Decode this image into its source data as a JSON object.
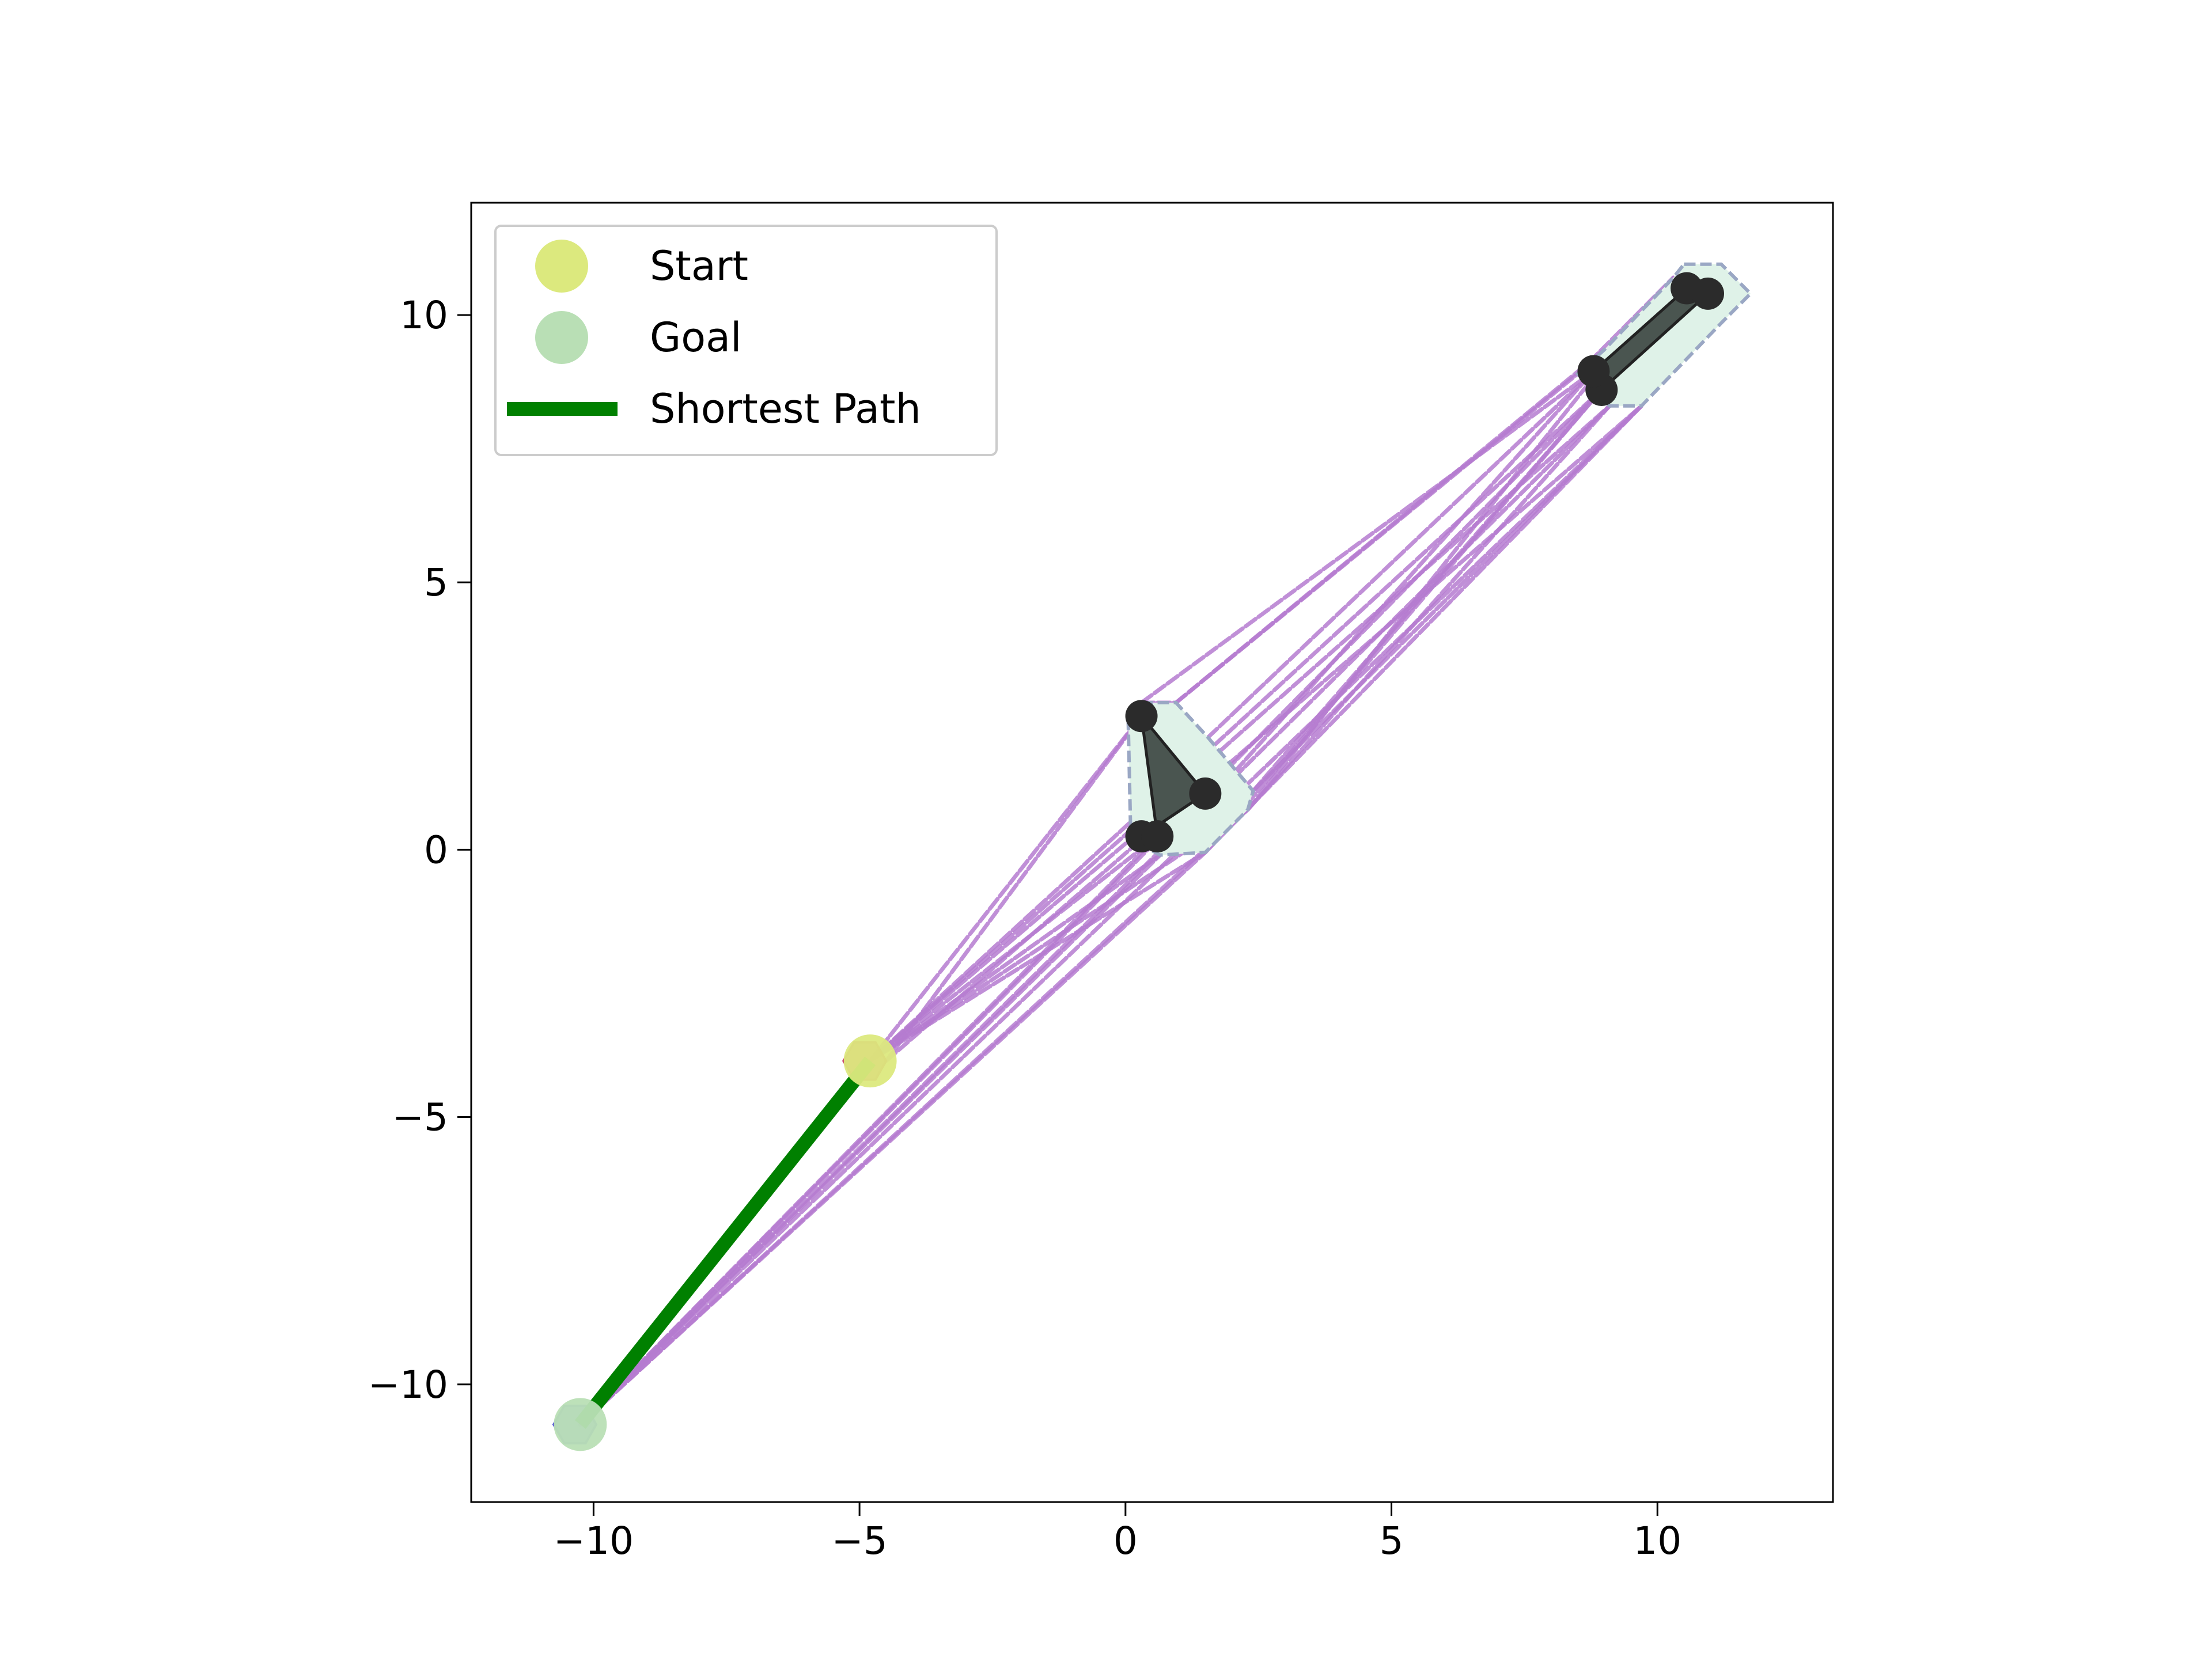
{
  "chart_data": {
    "type": "scatter",
    "title": "",
    "xlabel": "",
    "ylabel": "",
    "xlim": [
      -12.3,
      13.3
    ],
    "ylim": [
      -12.2,
      12.1
    ],
    "xticks": [
      -10,
      -5,
      0,
      5,
      10
    ],
    "yticks": [
      -10,
      -5,
      0,
      5,
      10
    ],
    "xtick_labels": [
      "−10",
      "−5",
      "0",
      "5",
      "10"
    ],
    "ytick_labels": [
      "−10",
      "−5",
      "0",
      "5",
      "10"
    ],
    "grid": false,
    "legend": {
      "position": "top-left",
      "entries": [
        {
          "label": "Start",
          "kind": "marker",
          "color": "#dce97e"
        },
        {
          "label": "Goal",
          "kind": "marker",
          "color": "#b9dfb5"
        },
        {
          "label": "Shortest Path",
          "kind": "line",
          "color": "#008000"
        }
      ]
    },
    "start": {
      "x": -4.8,
      "y": -3.95
    },
    "goal": {
      "x": -10.25,
      "y": -10.75
    },
    "robot_start_shape": {
      "color": "#c2185b",
      "points": [
        [
          -5.3,
          -3.95
        ],
        [
          -5.1,
          -3.6
        ],
        [
          -4.7,
          -3.6
        ],
        [
          -4.5,
          -3.95
        ],
        [
          -4.7,
          -4.3
        ],
        [
          -5.1,
          -4.3
        ]
      ]
    },
    "robot_goal_shape": {
      "color": "#6b6bf0",
      "points": [
        [
          -10.75,
          -10.75
        ],
        [
          -10.55,
          -10.4
        ],
        [
          -10.15,
          -10.4
        ],
        [
          -9.95,
          -10.75
        ],
        [
          -10.15,
          -11.1
        ],
        [
          -10.55,
          -11.1
        ]
      ]
    },
    "obstacles": [
      {
        "vertices": [
          [
            0.3,
            2.5
          ],
          [
            1.5,
            1.05
          ],
          [
            0.3,
            0.25
          ],
          [
            0.6,
            0.25
          ]
        ],
        "inflated": [
          [
            0.3,
            2.75
          ],
          [
            0.95,
            2.75
          ],
          [
            1.55,
            2.1
          ],
          [
            2.4,
            1.1
          ],
          [
            2.3,
            0.75
          ],
          [
            1.5,
            -0.05
          ],
          [
            0.65,
            -0.1
          ],
          [
            0.1,
            0.2
          ],
          [
            0.05,
            2.45
          ]
        ],
        "fill": "#4a5550",
        "inflated_fill": "#dff2e8"
      },
      {
        "vertices": [
          [
            10.55,
            10.5
          ],
          [
            10.95,
            10.4
          ],
          [
            8.95,
            8.6
          ],
          [
            8.8,
            8.95
          ]
        ],
        "inflated": [
          [
            10.5,
            10.95
          ],
          [
            11.2,
            10.95
          ],
          [
            11.75,
            10.4
          ],
          [
            11.2,
            9.85
          ],
          [
            9.7,
            8.3
          ],
          [
            9.1,
            8.3
          ],
          [
            8.5,
            8.9
          ],
          [
            9.0,
            9.35
          ],
          [
            10.3,
            10.7
          ]
        ],
        "fill": "#4a5550",
        "inflated_fill": "#dff2e8"
      }
    ],
    "visibility_edges": [
      [
        [
          -4.8,
          -3.95
        ],
        [
          0.3,
          2.5
        ]
      ],
      [
        [
          -4.8,
          -3.95
        ],
        [
          0.1,
          0.2
        ]
      ],
      [
        [
          -4.8,
          -3.95
        ],
        [
          0.6,
          0.25
        ]
      ],
      [
        [
          -4.8,
          -3.95
        ],
        [
          1.5,
          -0.05
        ]
      ],
      [
        [
          -4.8,
          -3.95
        ],
        [
          2.3,
          0.75
        ]
      ],
      [
        [
          -4.8,
          -3.95
        ],
        [
          0.65,
          -0.1
        ]
      ],
      [
        [
          -10.25,
          -10.75
        ],
        [
          0.6,
          0.25
        ]
      ],
      [
        [
          -10.25,
          -10.75
        ],
        [
          1.5,
          -0.05
        ]
      ],
      [
        [
          -10.25,
          -10.75
        ],
        [
          2.3,
          0.75
        ]
      ],
      [
        [
          -10.25,
          -10.75
        ],
        [
          0.65,
          -0.1
        ]
      ],
      [
        [
          -10.25,
          -10.75
        ],
        [
          -4.8,
          -3.95
        ]
      ],
      [
        [
          -10.25,
          -10.75
        ],
        [
          8.95,
          8.6
        ]
      ],
      [
        [
          -10.25,
          -10.75
        ],
        [
          9.1,
          8.3
        ]
      ],
      [
        [
          -10.25,
          -10.75
        ],
        [
          9.7,
          8.3
        ]
      ],
      [
        [
          0.3,
          2.5
        ],
        [
          -4.5,
          -3.95
        ]
      ],
      [
        [
          0.3,
          2.75
        ],
        [
          8.8,
          8.95
        ]
      ],
      [
        [
          0.95,
          2.75
        ],
        [
          8.5,
          8.9
        ]
      ],
      [
        [
          0.95,
          2.75
        ],
        [
          9.0,
          9.35
        ]
      ],
      [
        [
          1.55,
          2.1
        ],
        [
          8.8,
          8.95
        ]
      ],
      [
        [
          2.4,
          1.1
        ],
        [
          8.95,
          8.6
        ]
      ],
      [
        [
          2.4,
          1.1
        ],
        [
          9.7,
          8.3
        ]
      ],
      [
        [
          2.3,
          0.75
        ],
        [
          9.1,
          8.3
        ]
      ],
      [
        [
          2.3,
          0.75
        ],
        [
          10.3,
          10.7
        ]
      ],
      [
        [
          1.5,
          -0.05
        ],
        [
          9.7,
          8.3
        ]
      ],
      [
        [
          1.5,
          -0.05
        ],
        [
          8.95,
          8.6
        ]
      ],
      [
        [
          0.65,
          -0.1
        ],
        [
          8.8,
          8.95
        ]
      ],
      [
        [
          -4.8,
          -3.95
        ],
        [
          8.95,
          8.6
        ]
      ],
      [
        [
          -4.8,
          -3.95
        ],
        [
          9.1,
          8.3
        ]
      ],
      [
        [
          -4.5,
          -3.95
        ],
        [
          9.7,
          8.3
        ]
      ],
      [
        [
          0.3,
          2.75
        ],
        [
          0.95,
          2.75
        ]
      ],
      [
        [
          8.5,
          8.9
        ],
        [
          10.3,
          10.7
        ]
      ]
    ],
    "visibility_edge_color": "#b57bd0",
    "shortest_path": [
      [
        -4.8,
        -3.95
      ],
      [
        -10.25,
        -10.75
      ]
    ]
  }
}
